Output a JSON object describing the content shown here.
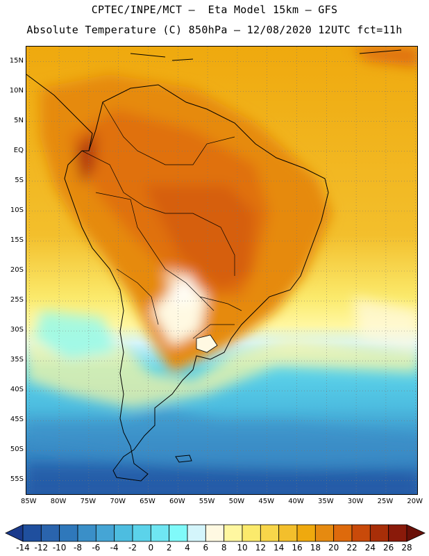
{
  "header": {
    "line1": "CPTEC/INPE/MCT –  Eta Model 15km – GFS",
    "line2": "Absolute Temperature (C) 850hPa – 12/08/2020 12UTC fct=11h"
  },
  "map": {
    "lat_labels": [
      "15N",
      "10N",
      "5N",
      "EQ",
      "5S",
      "10S",
      "15S",
      "20S",
      "25S",
      "30S",
      "35S",
      "40S",
      "45S",
      "50S",
      "55S"
    ],
    "lat_values": [
      15,
      10,
      5,
      0,
      -5,
      -10,
      -15,
      -20,
      -25,
      -30,
      -35,
      -40,
      -45,
      -50,
      -55
    ],
    "lon_labels": [
      "85W",
      "80W",
      "75W",
      "70W",
      "65W",
      "60W",
      "55W",
      "50W",
      "45W",
      "40W",
      "35W",
      "30W",
      "25W",
      "20W"
    ],
    "lon_values": [
      -85,
      -80,
      -75,
      -70,
      -65,
      -60,
      -55,
      -50,
      -45,
      -40,
      -35,
      -30,
      -25,
      -20
    ],
    "lat_range": [
      -57.5,
      17.5
    ],
    "lon_range": [
      -85.5,
      -19.5
    ]
  },
  "colorbar": {
    "labels": [
      "-14",
      "-12",
      "-10",
      "-8",
      "-6",
      "-4",
      "-2",
      "0",
      "2",
      "4",
      "6",
      "8",
      "10",
      "12",
      "14",
      "16",
      "18",
      "20",
      "22",
      "24",
      "26",
      "28"
    ],
    "colors": [
      "#1a3a8c",
      "#1f4f9e",
      "#2a64ad",
      "#2f78bb",
      "#3a8fc8",
      "#45a5d5",
      "#4dbde0",
      "#5bd3ea",
      "#6fe6f2",
      "#80fafa",
      "#d4f5fb",
      "#fff9e2",
      "#fff7a0",
      "#fbea6c",
      "#f8d64a",
      "#f3bf2c",
      "#efa90e",
      "#e68a10",
      "#de6a0c",
      "#c94a0a",
      "#a82e08",
      "#8a1a0a",
      "#6a1008"
    ],
    "unit": "C"
  }
}
